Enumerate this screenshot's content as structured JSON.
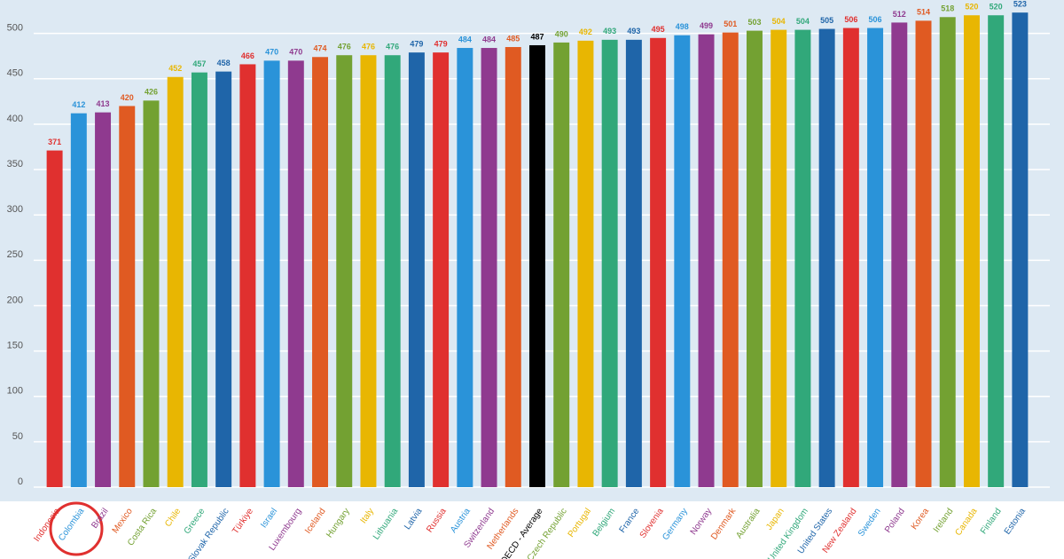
{
  "chart_data": {
    "type": "bar",
    "categories": [
      "Indonesia",
      "Colombia",
      "Brazil",
      "Mexico",
      "Costa Rica",
      "Chile",
      "Greece",
      "Slovak Republic",
      "Türkiye",
      "Israel",
      "Luxembourg",
      "Iceland",
      "Hungary",
      "Italy",
      "Lithuania",
      "Latvia",
      "Russia",
      "Austria",
      "Switzerland",
      "Netherlands",
      "OECD - Average",
      "Czech Republic",
      "Portugal",
      "Belgium",
      "France",
      "Slovenia",
      "Germany",
      "Norway",
      "Denmark",
      "Australia",
      "Japan",
      "United Kingdom",
      "United States",
      "New Zealand",
      "Sweden",
      "Poland",
      "Korea",
      "Ireland",
      "Canada",
      "Finland",
      "Estonia"
    ],
    "values": [
      371,
      412,
      413,
      420,
      426,
      452,
      457,
      458,
      466,
      470,
      470,
      474,
      476,
      476,
      476,
      479,
      479,
      484,
      484,
      485,
      487,
      490,
      492,
      493,
      493,
      495,
      498,
      499,
      501,
      503,
      504,
      504,
      505,
      506,
      506,
      512,
      514,
      518,
      520,
      520,
      523
    ],
    "colors": [
      "#e0302f",
      "#2a93d9",
      "#8f3a8f",
      "#e05a22",
      "#73a132",
      "#e8b602",
      "#31a87a",
      "#1f65a9",
      "#e0302f",
      "#2a93d9",
      "#8f3a8f",
      "#e05a22",
      "#73a132",
      "#e8b602",
      "#31a87a",
      "#1f65a9",
      "#e0302f",
      "#2a93d9",
      "#8f3a8f",
      "#e05a22",
      "#000000",
      "#73a132",
      "#e8b602",
      "#31a87a",
      "#1f65a9",
      "#e0302f",
      "#2a93d9",
      "#8f3a8f",
      "#e05a22",
      "#73a132",
      "#e8b602",
      "#31a87a",
      "#1f65a9",
      "#e0302f",
      "#2a93d9",
      "#8f3a8f",
      "#e05a22",
      "#73a132",
      "#e8b602",
      "#31a87a",
      "#1f65a9"
    ],
    "ylim": [
      0,
      530
    ],
    "yticks": [
      0,
      50,
      100,
      150,
      200,
      250,
      300,
      350,
      400,
      450,
      500
    ],
    "grid": true
  }
}
